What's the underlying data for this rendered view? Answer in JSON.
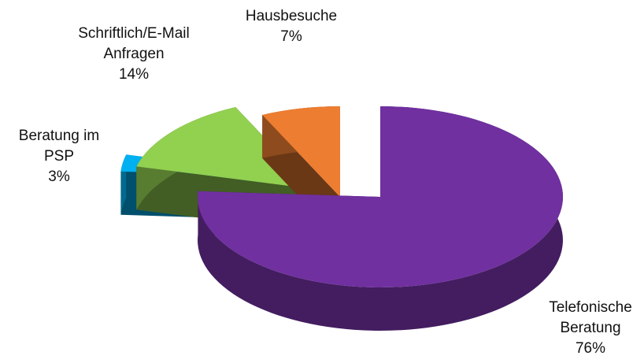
{
  "chart_data": {
    "type": "pie",
    "categories": [
      "Telefonische Beratung",
      "Beratung im PSP",
      "Schriftlich/E-Mail Anfragen",
      "Hausbesuche"
    ],
    "values": [
      76,
      3,
      14,
      7
    ],
    "value_labels": [
      "76%",
      "3%",
      "14%",
      "7%"
    ],
    "colors": [
      "#7030a0",
      "#00b0f0",
      "#92d050",
      "#ed7d31"
    ]
  }
}
